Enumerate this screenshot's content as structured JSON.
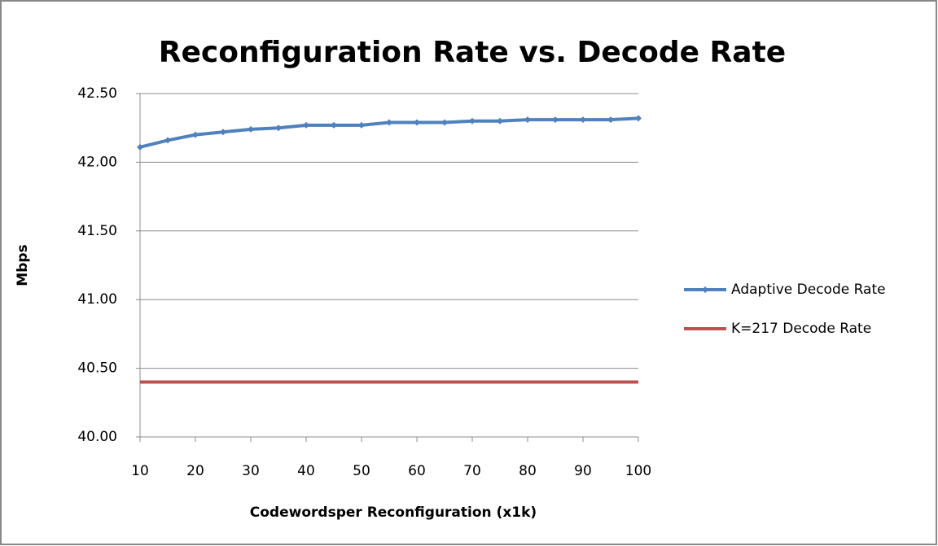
{
  "chart_data": {
    "type": "line",
    "title": "Reconfiguration Rate vs. Decode Rate",
    "x_label": "Codewordsper Reconfiguration (x1k)",
    "y_label": "Mbps",
    "x": [
      10,
      15,
      20,
      25,
      30,
      35,
      40,
      45,
      50,
      55,
      60,
      65,
      70,
      75,
      80,
      85,
      90,
      95,
      100
    ],
    "series": [
      {
        "name": "Adaptive Decode Rate",
        "color": "#4f81bd",
        "marker": true,
        "values": [
          42.11,
          42.16,
          42.2,
          42.22,
          42.24,
          42.25,
          42.27,
          42.27,
          42.27,
          42.29,
          42.29,
          42.29,
          42.3,
          42.3,
          42.31,
          42.31,
          42.31,
          42.31,
          42.32
        ]
      },
      {
        "name": "K=217 Decode Rate",
        "color": "#c0504d",
        "marker": false,
        "values": [
          40.4,
          40.4,
          40.4,
          40.4,
          40.4,
          40.4,
          40.4,
          40.4,
          40.4,
          40.4,
          40.4,
          40.4,
          40.4,
          40.4,
          40.4,
          40.4,
          40.4,
          40.4,
          40.4
        ]
      }
    ],
    "xlim": [
      10,
      100
    ],
    "xticks": [
      10,
      20,
      30,
      40,
      50,
      60,
      70,
      80,
      90,
      100
    ],
    "ylim": [
      40,
      42.5
    ],
    "yticks": [
      {
        "value": 40,
        "label": "40.00"
      },
      {
        "value": 40.5,
        "label": "40.50"
      },
      {
        "value": 41,
        "label": "41.00"
      },
      {
        "value": 41.5,
        "label": "41.50"
      },
      {
        "value": 42,
        "label": "42.00"
      },
      {
        "value": 42.5,
        "label": "42.50"
      }
    ],
    "grid": true,
    "legend": "right"
  }
}
